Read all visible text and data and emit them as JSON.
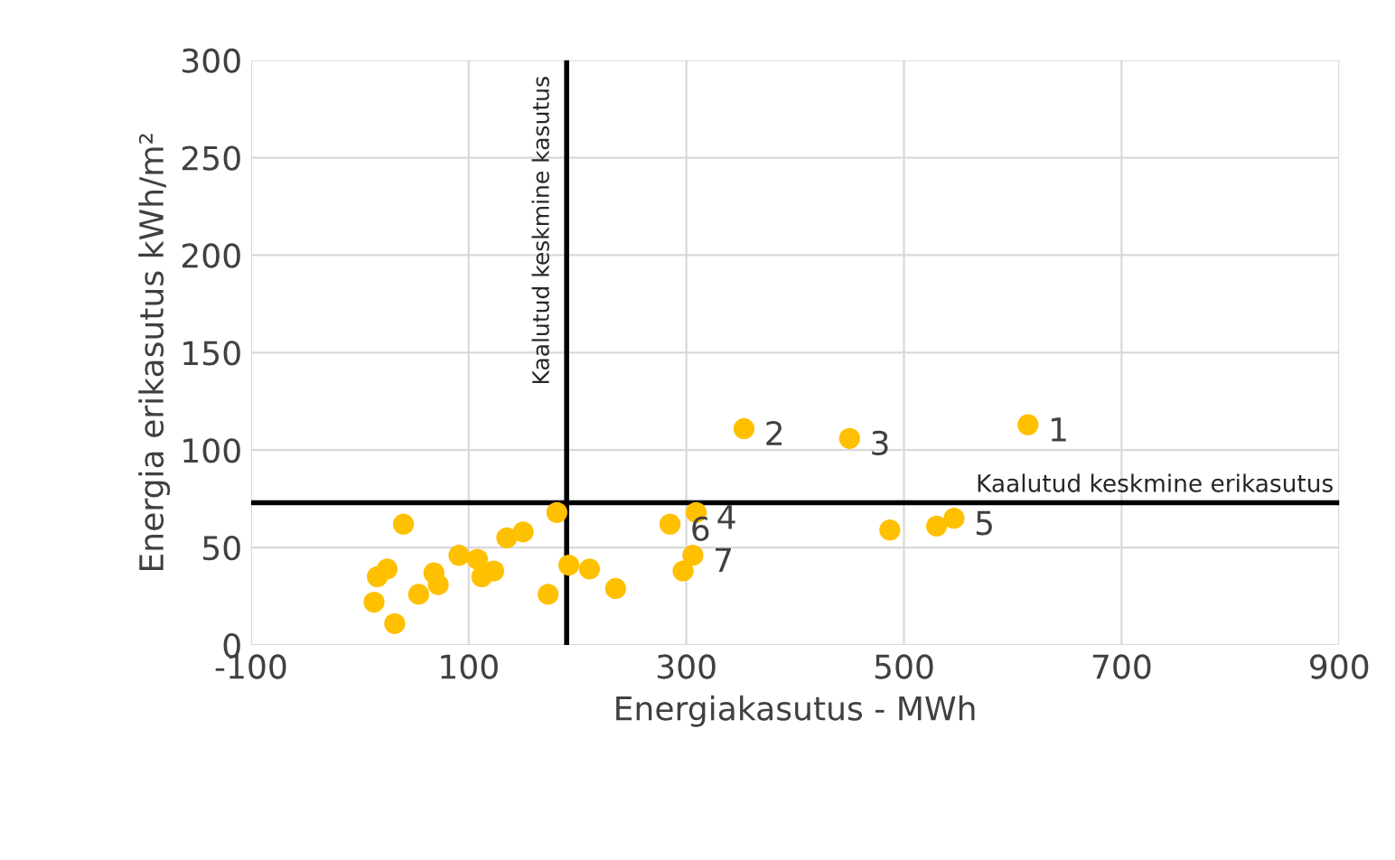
{
  "chart_data": {
    "type": "scatter",
    "xlabel": "Energiakasutus - MWh",
    "ylabel": "Energia erikasutus kWh/m²",
    "x": [
      40,
      25,
      16,
      13,
      32,
      54,
      68,
      72,
      85,
      91,
      108,
      112,
      123,
      135,
      150,
      181,
      173,
      192,
      211,
      235,
      285,
      309,
      306,
      297,
      353,
      450,
      614,
      487,
      530,
      546
    ],
    "series": [
      {
        "color": "#ffc000",
        "values": [
          62,
          39,
          35,
          22,
          11,
          26,
          37,
          31,
          null,
          46,
          44,
          35,
          38,
          55,
          58,
          68,
          26,
          41,
          39,
          29,
          62,
          68,
          46,
          38,
          111,
          106,
          113,
          59,
          61,
          65
        ]
      }
    ],
    "marker": "circle",
    "xlim": [
      -100,
      900
    ],
    "xticks": [
      -100,
      100,
      300,
      500,
      700,
      900
    ],
    "ylim": [
      0,
      300
    ],
    "yticks": [
      0,
      50,
      100,
      150,
      200,
      250,
      300
    ],
    "grid": true,
    "ref_lines": [
      {
        "axis": "x",
        "value": 190,
        "label": "Kaalutud keskmine kasutus",
        "color": "#000000"
      },
      {
        "axis": "y",
        "value": 73,
        "label": "Kaalutud keskmine erikasutus",
        "color": "#000000"
      }
    ],
    "annotations": [
      {
        "text": "1",
        "x": 614,
        "y": 113
      },
      {
        "text": "2",
        "x": 353,
        "y": 111
      },
      {
        "text": "3",
        "x": 450,
        "y": 106
      },
      {
        "text": "4",
        "x": 309,
        "y": 68
      },
      {
        "text": "5",
        "x": 546,
        "y": 65
      },
      {
        "text": "6",
        "x": 285,
        "y": 62
      },
      {
        "text": "7",
        "x": 306,
        "y": 46
      }
    ]
  }
}
